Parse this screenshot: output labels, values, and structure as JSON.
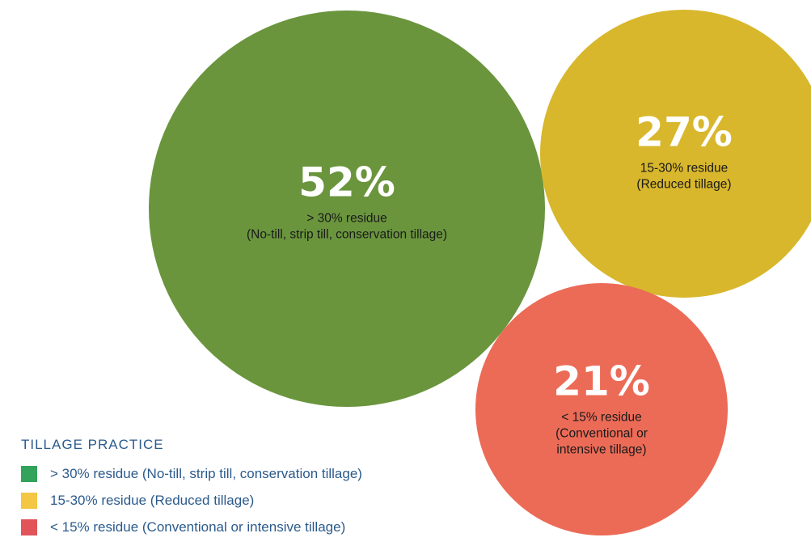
{
  "chart_data": {
    "type": "bubble",
    "title": "",
    "series": [
      {
        "label": "52%",
        "value": 52,
        "desc_lines": [
          "> 30% residue",
          "(No-till, strip till, conservation tillage)"
        ],
        "color": "#6a953d"
      },
      {
        "label": "27%",
        "value": 27,
        "desc_lines": [
          "15-30% residue",
          "(Reduced tillage)"
        ],
        "color": "#d8b72c"
      },
      {
        "label": "21%",
        "value": 21,
        "desc_lines": [
          "< 15% residue",
          "(Conventional or",
          "intensive tillage)"
        ],
        "color": "#ec6b57"
      }
    ],
    "legend": {
      "title": "TILLAGE PRACTICE",
      "placement": "bottom-left",
      "items": [
        {
          "label": "> 30% residue (No-till, strip till, conservation tillage)",
          "color": "#33a35c"
        },
        {
          "label": "15-30% residue (Reduced tillage)",
          "color": "#f3c744"
        },
        {
          "label": "< 15% residue (Conventional or intensive tillage)",
          "color": "#e0545a"
        }
      ]
    }
  }
}
